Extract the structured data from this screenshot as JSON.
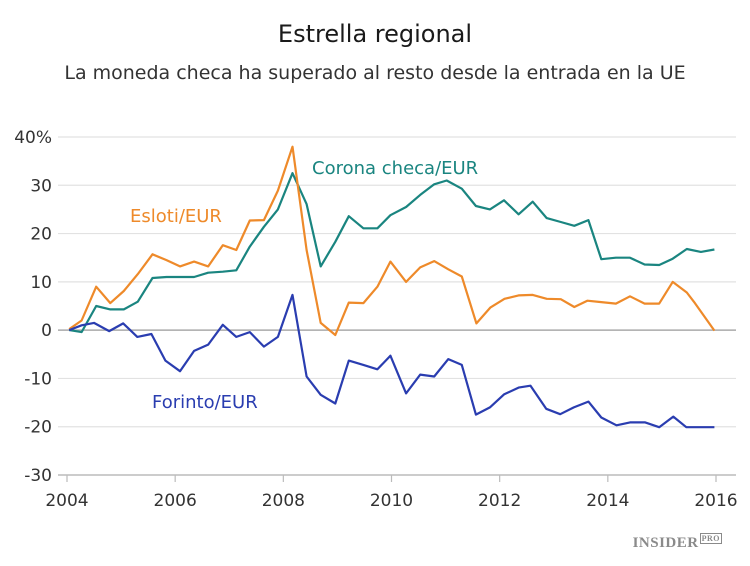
{
  "chart_data": {
    "type": "line",
    "title": "Estrella regional",
    "subtitle": "La moneda checa ha superado al resto desde la entrada en la UE",
    "xlim": [
      2004,
      2016
    ],
    "ylim": [
      -30,
      40
    ],
    "x_ticks": [
      "2004",
      "2006",
      "2008",
      "2010",
      "2012",
      "2014",
      "2016"
    ],
    "y_ticks": [
      "40%",
      "30",
      "20",
      "10",
      "0",
      "-10",
      "-20",
      "-30"
    ],
    "grid": true,
    "series": [
      {
        "name": "Corona checa/EUR",
        "color": "#1a8580",
        "x": [
          2004.04,
          2004.27,
          2004.54,
          2004.8,
          2005.05,
          2005.31,
          2005.58,
          2005.84,
          2006.09,
          2006.35,
          2006.61,
          2006.88,
          2007.13,
          2007.38,
          2007.64,
          2007.9,
          2008.17,
          2008.43,
          2008.69,
          2008.96,
          2009.21,
          2009.48,
          2009.74,
          2009.98,
          2010.27,
          2010.53,
          2010.79,
          2011.02,
          2011.3,
          2011.56,
          2011.82,
          2012.08,
          2012.35,
          2012.61,
          2012.87,
          2013.13,
          2013.38,
          2013.64,
          2013.88,
          2014.15,
          2014.41,
          2014.68,
          2014.95,
          2015.2,
          2015.46,
          2015.72,
          2015.97
        ],
        "y": [
          0,
          -0.4,
          5,
          4.3,
          4.3,
          5.9,
          10.8,
          11,
          11,
          11,
          11.9,
          12.1,
          12.4,
          17.3,
          21.4,
          25,
          32.5,
          26.1,
          13.2,
          18.3,
          23.6,
          21.1,
          21.1,
          23.8,
          25.5,
          28,
          30.2,
          31,
          29.3,
          25.7,
          25,
          26.9,
          24,
          26.6,
          23.2,
          22.4,
          21.6,
          22.8,
          14.7,
          15,
          15,
          13.6,
          13.5,
          14.8,
          16.8,
          16.2,
          16.7
        ]
      },
      {
        "name": "Esloti/EUR",
        "color": "#ee8a2a",
        "x": [
          2004.04,
          2004.27,
          2004.54,
          2004.8,
          2005.05,
          2005.31,
          2005.58,
          2005.84,
          2006.09,
          2006.35,
          2006.61,
          2006.88,
          2007.13,
          2007.38,
          2007.64,
          2007.9,
          2008.17,
          2008.43,
          2008.69,
          2008.96,
          2009.21,
          2009.48,
          2009.74,
          2009.98,
          2010.27,
          2010.53,
          2010.79,
          2011.05,
          2011.3,
          2011.57,
          2011.83,
          2012.09,
          2012.35,
          2012.61,
          2012.87,
          2013.13,
          2013.38,
          2013.62,
          2013.88,
          2014.15,
          2014.41,
          2014.68,
          2014.95,
          2015.2,
          2015.46,
          2015.61,
          2015.97
        ],
        "y": [
          0.2,
          2,
          9,
          5.6,
          8.1,
          11.6,
          15.7,
          14.5,
          13.2,
          14.2,
          13.2,
          17.6,
          16.6,
          22.7,
          22.8,
          28.9,
          38,
          16.6,
          1.5,
          -1,
          5.7,
          5.6,
          9,
          14.2,
          10,
          13,
          14.3,
          12.6,
          11.1,
          1.4,
          4.7,
          6.5,
          7.2,
          7.3,
          6.5,
          6.4,
          4.8,
          6.1,
          5.8,
          5.5,
          7,
          5.5,
          5.5,
          10,
          7.8,
          5.6,
          -0.1
        ]
      },
      {
        "name": "Forinto/EUR",
        "color": "#2a3db0",
        "x": [
          2004.04,
          2004.27,
          2004.5,
          2004.78,
          2005.04,
          2005.3,
          2005.56,
          2005.82,
          2006.09,
          2006.35,
          2006.61,
          2006.88,
          2007.13,
          2007.38,
          2007.64,
          2007.9,
          2008.17,
          2008.43,
          2008.69,
          2008.96,
          2009.21,
          2009.48,
          2009.74,
          2009.98,
          2010.27,
          2010.53,
          2010.79,
          2011.05,
          2011.3,
          2011.56,
          2011.82,
          2012.08,
          2012.35,
          2012.57,
          2012.86,
          2013.12,
          2013.37,
          2013.64,
          2013.88,
          2014.16,
          2014.41,
          2014.69,
          2014.95,
          2015.21,
          2015.45,
          2015.7,
          2015.97
        ],
        "y": [
          0,
          1,
          1.5,
          -0.2,
          1.4,
          -1.4,
          -0.8,
          -6.3,
          -8.5,
          -4.3,
          -3,
          1.1,
          -1.4,
          -0.4,
          -3.4,
          -1.4,
          7.3,
          -9.6,
          -13.4,
          -15.2,
          -6.3,
          -7.2,
          -8.1,
          -5.3,
          -13.1,
          -9.2,
          -9.6,
          -6,
          -7.2,
          -17.5,
          -16,
          -13.3,
          -11.9,
          -11.5,
          -16.3,
          -17.4,
          -16,
          -14.8,
          -18.1,
          -19.7,
          -19.1,
          -19.1,
          -20.1,
          -17.9,
          -20.1,
          -20.1,
          -20.1
        ]
      }
    ]
  },
  "logo": {
    "text": "INSIDER",
    "suffix": "PRO"
  }
}
